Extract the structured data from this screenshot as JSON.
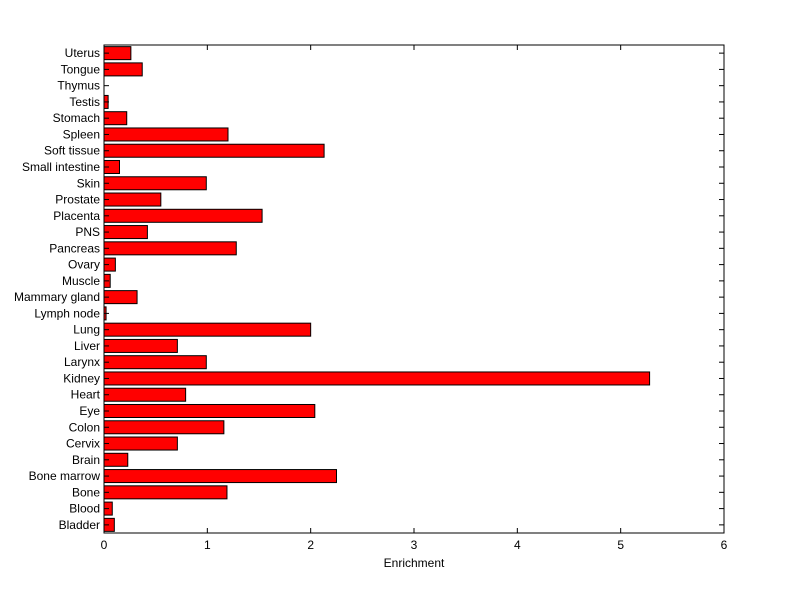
{
  "chart_data": {
    "type": "bar",
    "orientation": "horizontal",
    "title": "",
    "xlabel": "Enrichment",
    "ylabel": "",
    "xlim": [
      0,
      6
    ],
    "xticks": [
      "0",
      "1",
      "2",
      "3",
      "4",
      "5",
      "6"
    ],
    "grid": false,
    "bar_color": "#ff0000",
    "categories": [
      "Bladder",
      "Blood",
      "Bone",
      "Bone marrow",
      "Brain",
      "Cervix",
      "Colon",
      "Eye",
      "Heart",
      "Kidney",
      "Larynx",
      "Liver",
      "Lung",
      "Lymph node",
      "Mammary gland",
      "Muscle",
      "Ovary",
      "Pancreas",
      "PNS",
      "Placenta",
      "Prostate",
      "Skin",
      "Small intestine",
      "Soft tissue",
      "Spleen",
      "Stomach",
      "Testis",
      "Thymus",
      "Tongue",
      "Uterus"
    ],
    "values": [
      0.1,
      0.08,
      1.19,
      2.25,
      0.23,
      0.71,
      1.16,
      2.04,
      0.79,
      5.28,
      0.99,
      0.71,
      2.0,
      0.02,
      0.32,
      0.06,
      0.11,
      1.28,
      0.42,
      1.53,
      0.55,
      0.99,
      0.15,
      2.13,
      1.2,
      0.22,
      0.04,
      0.0,
      0.37,
      0.26
    ]
  }
}
